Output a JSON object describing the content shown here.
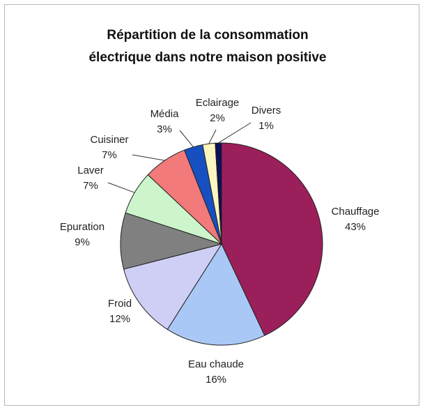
{
  "chart_data": {
    "type": "pie",
    "title": [
      "Répartition de la consommation",
      "électrique dans notre maison positive"
    ],
    "slices": [
      {
        "label": "Chauffage",
        "value": 43,
        "value_label": "43%",
        "color": "#9b1f5a"
      },
      {
        "label": "Eau chaude",
        "value": 16,
        "value_label": "16%",
        "color": "#a9c8f5"
      },
      {
        "label": "Froid",
        "value": 12,
        "value_label": "12%",
        "color": "#cfcff5"
      },
      {
        "label": "Epuration",
        "value": 9,
        "value_label": "9%",
        "color": "#808080"
      },
      {
        "label": "Laver",
        "value": 7,
        "value_label": "7%",
        "color": "#ccf5cc"
      },
      {
        "label": "Cuisiner",
        "value": 7,
        "value_label": "7%",
        "color": "#f27a7a"
      },
      {
        "label": "Média",
        "value": 3,
        "value_label": "3%",
        "color": "#1650c0"
      },
      {
        "label": "Eclairage",
        "value": 2,
        "value_label": "2%",
        "color": "#fbf6c0"
      },
      {
        "label": "Divers",
        "value": 1,
        "value_label": "1%",
        "color": "#0c0f5a"
      }
    ]
  }
}
